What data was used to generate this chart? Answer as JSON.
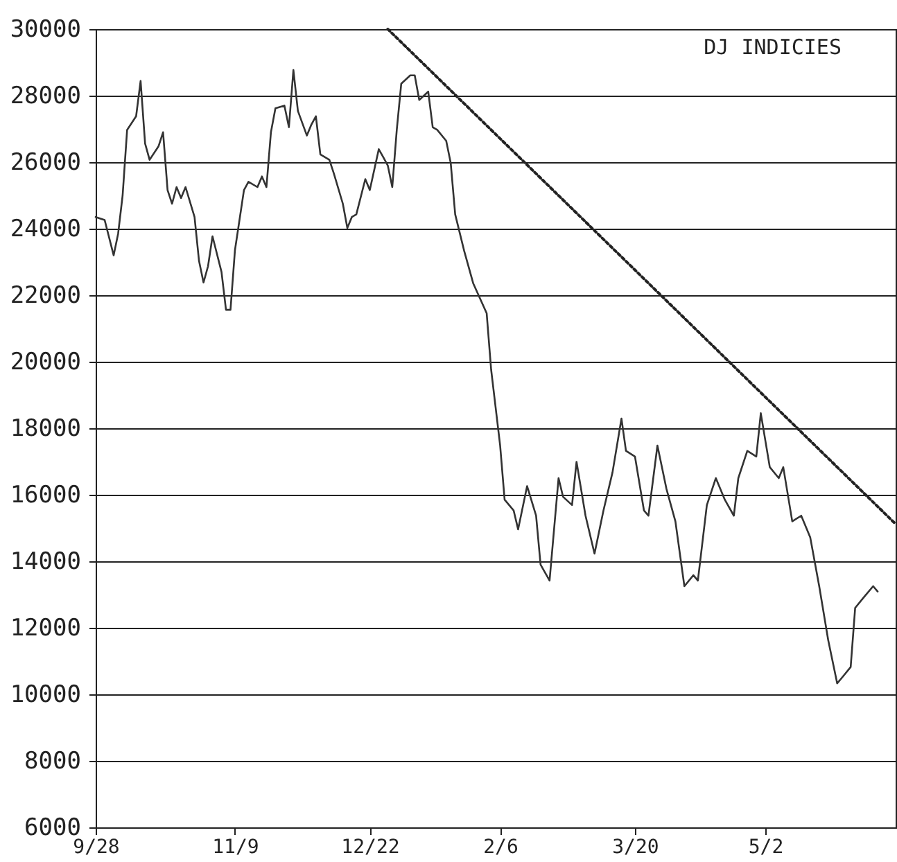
{
  "chart_data": {
    "type": "line",
    "title": "DJ INDICIES",
    "categories": [
      "9/28",
      null,
      null,
      null,
      null,
      null,
      null,
      null,
      null,
      null,
      null,
      null,
      null,
      null,
      null,
      null,
      null,
      null,
      null,
      null,
      null,
      null,
      null,
      null,
      null,
      null,
      null,
      null,
      null,
      null,
      null,
      "11/9",
      null,
      null,
      null,
      null,
      null,
      null,
      null,
      null,
      null,
      null,
      null,
      null,
      null,
      null,
      null,
      null,
      null,
      null,
      null,
      null,
      null,
      null,
      null,
      null,
      null,
      null,
      null,
      null,
      null,
      "12/22",
      null,
      null,
      null,
      null,
      null,
      null,
      null,
      null,
      null,
      null,
      null,
      null,
      null,
      null,
      null,
      null,
      null,
      null,
      null,
      null,
      null,
      null,
      null,
      null,
      null,
      null,
      null,
      null,
      "2/6",
      null,
      null,
      null,
      null,
      null,
      null,
      null,
      null,
      null,
      null,
      null,
      null,
      null,
      null,
      null,
      null,
      null,
      null,
      null,
      null,
      null,
      null,
      null,
      null,
      null,
      null,
      null,
      null,
      null,
      "3/20",
      null,
      null,
      null,
      null,
      null,
      null,
      null,
      null,
      null,
      null,
      null,
      null,
      null,
      null,
      null,
      null,
      null,
      null,
      null,
      null,
      null,
      null,
      null,
      null,
      null,
      null,
      null,
      null,
      "5/2",
      null,
      null,
      null,
      null,
      null,
      null,
      null,
      null,
      null,
      null,
      null,
      null,
      null,
      null,
      null,
      null,
      null,
      null,
      null,
      null,
      null,
      null,
      null,
      null,
      null,
      null,
      null,
      null,
      null
    ],
    "ylim": [
      6000,
      30000
    ],
    "yticks": [
      6000,
      8000,
      10000,
      12000,
      14000,
      16000,
      18000,
      20000,
      22000,
      24000,
      26000,
      28000,
      30000
    ],
    "grid": "y",
    "marker": "none",
    "line_style": "solid",
    "series": [
      {
        "color": "#333333",
        "values": [
          24350,
          null,
          24260,
          null,
          23200,
          23850,
          25000,
          26970,
          null,
          27380,
          28440,
          26560,
          26070,
          null,
          26480,
          26900,
          25160,
          24750,
          25250,
          24920,
          25250,
          null,
          24350,
          23030,
          22380,
          22870,
          23770,
          null,
          22700,
          21560,
          21560,
          23360,
          null,
          25160,
          25410,
          null,
          25250,
          25570,
          25250,
          26900,
          27620,
          null,
          27700,
          27050,
          28770,
          27540,
          null,
          26800,
          27130,
          27380,
          26230,
          null,
          26070,
          25660,
          null,
          24750,
          24020,
          24350,
          24430,
          null,
          25490,
          25160,
          null,
          26390,
          26150,
          25900,
          25250,
          26970,
          28360,
          null,
          28610,
          28610,
          27870,
          null,
          28120,
          27050,
          26970,
          null,
          26640,
          25980,
          24430,
          null,
          23330,
          null,
          22360,
          null,
          null,
          21460,
          19760,
          null,
          17480,
          15850,
          null,
          15530,
          14960,
          null,
          16260,
          null,
          15370,
          13900,
          null,
          13420,
          null,
          16500,
          15940,
          null,
          15690,
          16990,
          null,
          15370,
          null,
          14230,
          null,
          15530,
          null,
          16670,
          null,
          18290,
          17320,
          null,
          17150,
          null,
          15530,
          15370,
          null,
          17480,
          null,
          16180,
          null,
          15200,
          null,
          13250,
          null,
          13580,
          13420,
          null,
          15690,
          null,
          16500,
          null,
          15850,
          null,
          15370,
          16500,
          null,
          17320,
          null,
          17150,
          18450,
          null,
          16830,
          null,
          16500,
          16830,
          null,
          15200,
          null,
          15370,
          null,
          14720,
          null,
          13250,
          null,
          11630,
          null,
          10330,
          10490,
          null,
          10820,
          12600,
          null,
          12930,
          null,
          13250,
          13090,
          null,
          null,
          null,
          null
        ]
      },
      {
        "type": "line",
        "color": "#222222",
        "line_style": "dotted",
        "values": [
          null,
          null,
          null,
          null,
          null,
          null,
          null,
          null,
          null,
          null,
          null,
          null,
          null,
          null,
          null,
          null,
          null,
          null,
          null,
          null,
          null,
          null,
          null,
          null,
          null,
          null,
          null,
          null,
          null,
          null,
          null,
          null,
          null,
          null,
          null,
          null,
          null,
          null,
          null,
          null,
          null,
          null,
          null,
          null,
          null,
          null,
          null,
          null,
          null,
          null,
          null,
          null,
          null,
          null,
          null,
          null,
          null,
          null,
          null,
          null,
          null,
          null,
          null,
          null,
          null,
          30000,
          null,
          null,
          null,
          null,
          null,
          null,
          null,
          null,
          null,
          null,
          null,
          null,
          null,
          null,
          null,
          null,
          null,
          null,
          null,
          null,
          null,
          null,
          null,
          null,
          null,
          null,
          null,
          null,
          null,
          null,
          null,
          null,
          null,
          null,
          null,
          null,
          null,
          null,
          null,
          null,
          null,
          null,
          null,
          null,
          null,
          null,
          null,
          null,
          null,
          null,
          null,
          null,
          null,
          null,
          null,
          null,
          null,
          null,
          null,
          null,
          null,
          null,
          null,
          null,
          null,
          null,
          null,
          null,
          null,
          null,
          null,
          null,
          null,
          null,
          null,
          null,
          null,
          null,
          null,
          null,
          null,
          null,
          null,
          null,
          null,
          null,
          null,
          null,
          null,
          null,
          null,
          null,
          null,
          null,
          null,
          null,
          null,
          null,
          null,
          null,
          null,
          null,
          null,
          null,
          null,
          null,
          null,
          null,
          null,
          null,
          null,
          null,
          15120
        ]
      }
    ]
  }
}
